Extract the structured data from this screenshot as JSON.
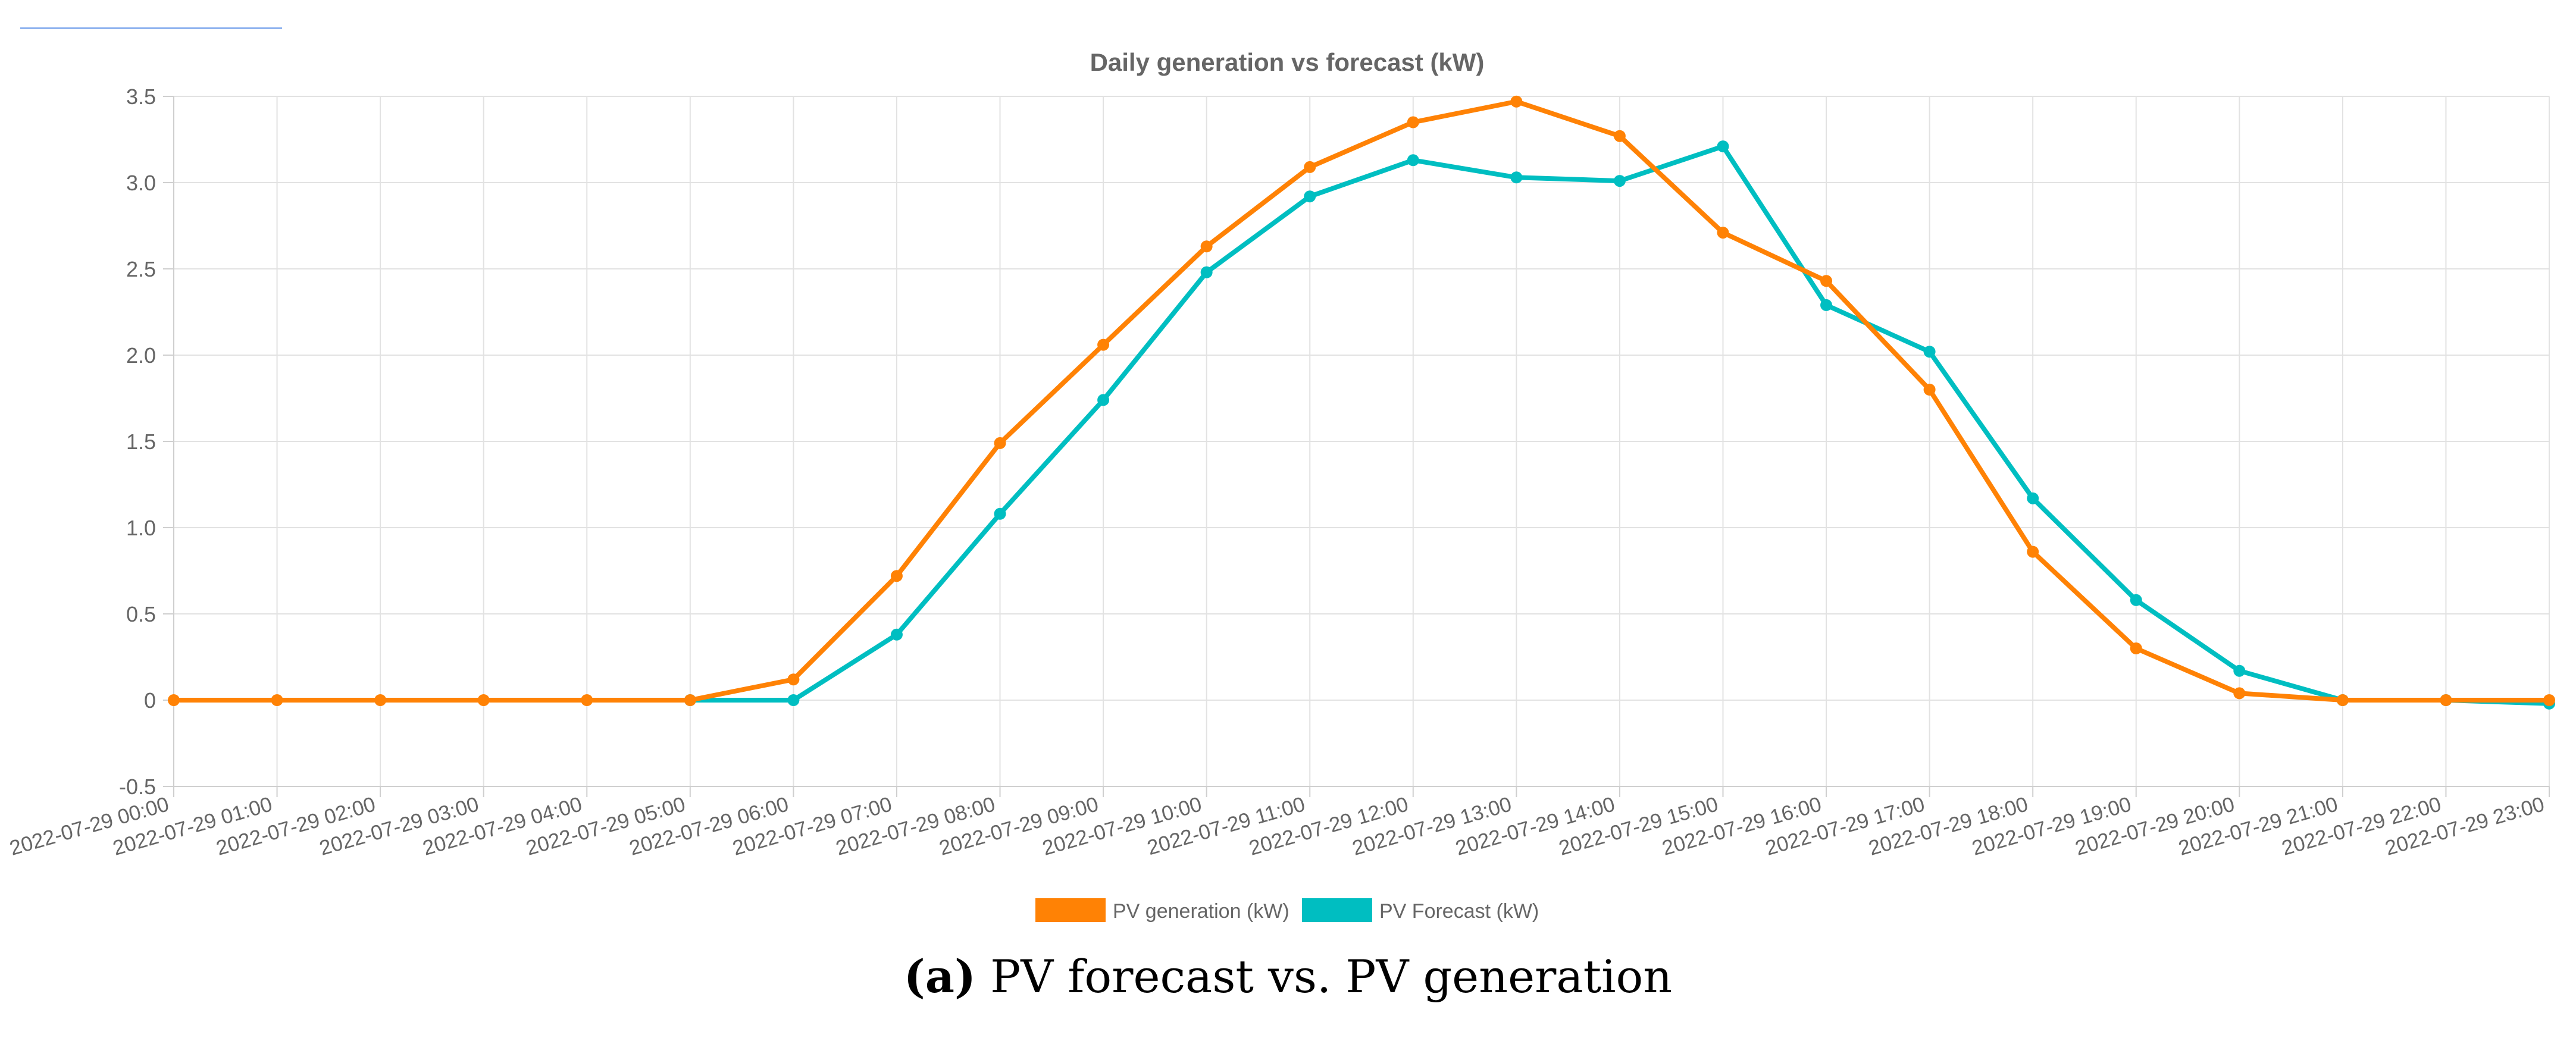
{
  "chart_data": {
    "type": "line",
    "title": "Daily generation vs forecast (kW)",
    "xlabel": "",
    "ylabel": "",
    "ylim": [
      -0.5,
      3.5
    ],
    "yticks": [
      "3.5",
      "3.0",
      "2.5",
      "2.0",
      "1.5",
      "1.0",
      "0.5",
      "0",
      "-0.5"
    ],
    "ytick_values": [
      3.5,
      3.0,
      2.5,
      2.0,
      1.5,
      1.0,
      0.5,
      0,
      -0.5
    ],
    "categories": [
      "2022-07-29 00:00",
      "2022-07-29 01:00",
      "2022-07-29 02:00",
      "2022-07-29 03:00",
      "2022-07-29 04:00",
      "2022-07-29 05:00",
      "2022-07-29 06:00",
      "2022-07-29 07:00",
      "2022-07-29 08:00",
      "2022-07-29 09:00",
      "2022-07-29 10:00",
      "2022-07-29 11:00",
      "2022-07-29 12:00",
      "2022-07-29 13:00",
      "2022-07-29 14:00",
      "2022-07-29 15:00",
      "2022-07-29 16:00",
      "2022-07-29 17:00",
      "2022-07-29 18:00",
      "2022-07-29 19:00",
      "2022-07-29 20:00",
      "2022-07-29 21:00",
      "2022-07-29 22:00",
      "2022-07-29 23:00"
    ],
    "series": [
      {
        "name": "PV generation (kW)",
        "color": "#ff8205",
        "values": [
          0,
          0,
          0,
          0,
          0,
          0,
          0.12,
          0.72,
          1.49,
          2.06,
          2.63,
          3.09,
          3.35,
          3.47,
          3.27,
          2.71,
          2.43,
          1.8,
          0.86,
          0.3,
          0.04,
          0,
          0,
          0
        ]
      },
      {
        "name": "PV Forecast (kW)",
        "color": "#00bec1",
        "values": [
          null,
          null,
          null,
          null,
          null,
          0,
          0,
          0.38,
          1.08,
          1.74,
          2.48,
          2.92,
          3.13,
          3.03,
          3.01,
          3.21,
          2.29,
          2.02,
          1.17,
          0.58,
          0.17,
          0,
          0,
          -0.02
        ]
      }
    ],
    "legend": "bottom-center",
    "grid": true
  },
  "caption": {
    "label": "(a)",
    "text": "PV forecast vs. PV generation"
  }
}
